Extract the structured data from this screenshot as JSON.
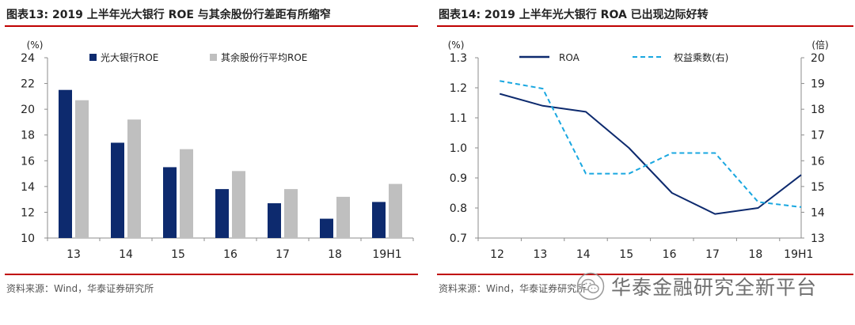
{
  "figures": {
    "left": {
      "title": "图表13:  2019 上半年光大银行 ROE 与其余股份行差距有所缩窄",
      "source": "资料来源：Wind，华泰证券研究所"
    },
    "right": {
      "title": "图表14:  2019 上半年光大银行 ROA 已出现边际好转",
      "source": "资料来源：Wind，华泰证券研究所"
    }
  },
  "watermark": {
    "text": "华泰金融研究全新平台",
    "icon": "wechat-icon"
  },
  "colors": {
    "rule": "#c00000",
    "navy": "#0d2a6e",
    "gray": "#bfbfbf",
    "cyan": "#19a7e0"
  },
  "chart_data": [
    {
      "type": "bar",
      "categories": [
        "13",
        "14",
        "15",
        "16",
        "17",
        "18",
        "19H1"
      ],
      "ylabel": "(%)",
      "ylim": [
        10,
        24
      ],
      "yticks": [
        "10",
        "12",
        "14",
        "16",
        "18",
        "20",
        "22",
        "24"
      ],
      "grid": false,
      "legend_position": "top-left",
      "series": [
        {
          "name": "光大银行ROE",
          "color": "#0d2a6e",
          "values": [
            21.5,
            17.4,
            15.5,
            13.8,
            12.7,
            11.5,
            12.8
          ]
        },
        {
          "name": "其余股份行平均ROE",
          "color": "#bfbfbf",
          "values": [
            20.7,
            19.2,
            16.9,
            15.2,
            13.8,
            13.2,
            14.2
          ]
        }
      ]
    },
    {
      "type": "line",
      "categories": [
        "12",
        "13",
        "14",
        "15",
        "16",
        "17",
        "18",
        "19H1"
      ],
      "ylabel_left": "(%)",
      "ylabel_right": "(倍)",
      "ylim_left": [
        0.7,
        1.3
      ],
      "ylim_right": [
        13,
        20
      ],
      "yticks_left": [
        "0.7",
        "0.8",
        "0.9",
        "1.0",
        "1.1",
        "1.2",
        "1.3"
      ],
      "yticks_right": [
        "13",
        "14",
        "15",
        "16",
        "17",
        "18",
        "19",
        "20"
      ],
      "grid": false,
      "legend_position": "top",
      "series": [
        {
          "name": "ROA",
          "axis": "left",
          "style": "solid",
          "color": "#0d2a6e",
          "values": [
            1.18,
            1.14,
            1.12,
            1.0,
            0.85,
            0.78,
            0.8,
            0.91
          ]
        },
        {
          "name": "权益乘数(右)",
          "axis": "right",
          "style": "dashed",
          "color": "#19a7e0",
          "values": [
            19.1,
            18.8,
            15.5,
            15.5,
            16.3,
            16.3,
            14.4,
            14.2
          ]
        }
      ]
    }
  ]
}
